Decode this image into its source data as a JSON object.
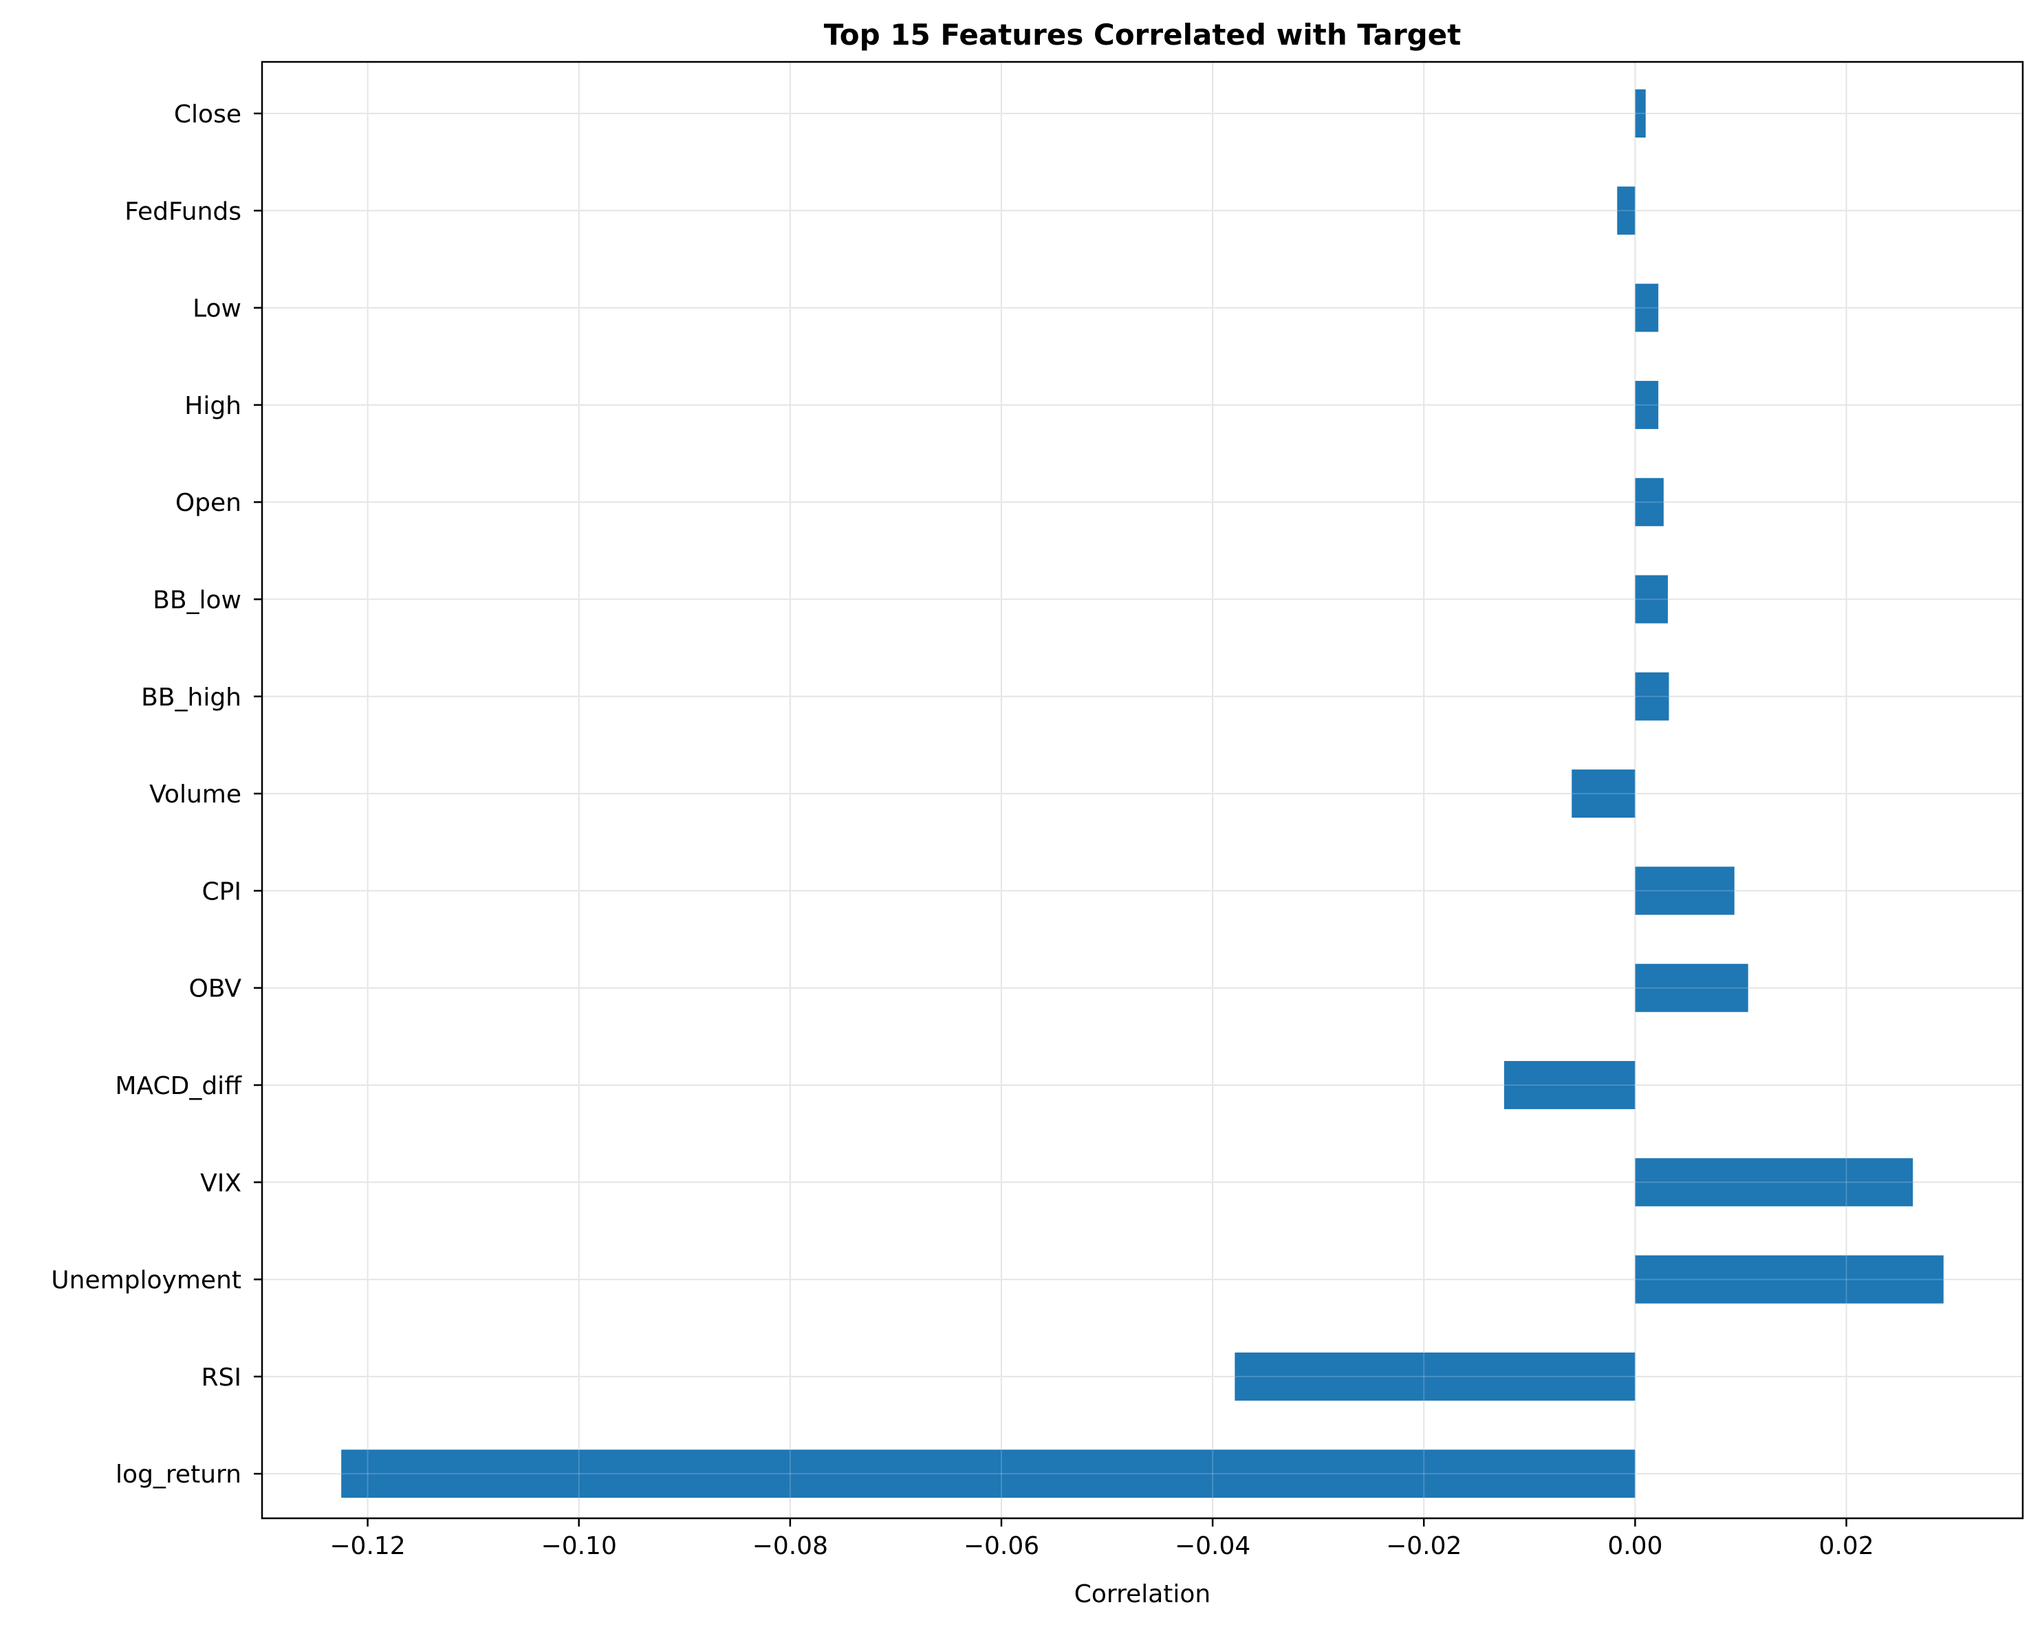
{
  "chart_data": {
    "type": "bar",
    "orientation": "horizontal",
    "title": "Top 15 Features Correlated with Target",
    "xlabel": "Correlation",
    "ylabel": "",
    "categories": [
      "Close",
      "FedFunds",
      "Low",
      "High",
      "Open",
      "BB_low",
      "BB_high",
      "Volume",
      "CPI",
      "OBV",
      "MACD_diff",
      "VIX",
      "Unemployment",
      "RSI",
      "log_return"
    ],
    "values": [
      0.001,
      -0.0017,
      0.0022,
      0.0022,
      0.0027,
      0.0031,
      0.0032,
      -0.006,
      0.0094,
      0.0107,
      -0.0124,
      0.0263,
      0.0292,
      -0.0379,
      -0.1225
    ],
    "xlim": [
      -0.13,
      0.0367
    ],
    "xticks": [
      -0.12,
      -0.1,
      -0.08,
      -0.06,
      -0.04,
      -0.02,
      0.0,
      0.02
    ],
    "xtick_labels": [
      "−0.12",
      "−0.10",
      "−0.08",
      "−0.06",
      "−0.04",
      "−0.02",
      "0.00",
      "0.02"
    ],
    "grid": true,
    "legend": "none",
    "colors": {
      "bar": "#1f77b4",
      "grid": "#e0e0e0",
      "axis": "#000000"
    }
  }
}
